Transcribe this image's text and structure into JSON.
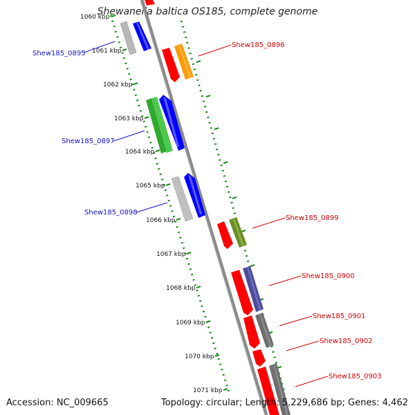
{
  "title": "Shewanella baltica OS185, complete genome",
  "accession": "Accession: NC_009665",
  "summary": "Topology: circular; Length: 5,229,686 bp; Genes: 4,462",
  "colors": {
    "backbone": "#8a8a8a",
    "tick_dots": "#1a8a1a",
    "forward_label": "#d00000",
    "reverse_label": "#1010c0",
    "red": "#ff0000",
    "blue": "#0000ff",
    "green": "#2ea82e",
    "gray": "#b8b8b8",
    "darkgray": "#707070",
    "orange": "#ff9900",
    "olive": "#6b8e23",
    "slate": "#4b4b9b"
  },
  "kbp_labels": [
    "1060 kbp",
    "1061 kbp",
    "1062 kbp",
    "1063 kbp",
    "1064 kbp",
    "1065 kbp",
    "1066 kbp",
    "1067 kbp",
    "1068 kbp",
    "1069 kbp",
    "1070 kbp",
    "1071 kbp"
  ],
  "gene_labels": {
    "g0895": "Shew185_0895",
    "g0896": "Shew185_0896",
    "g0897": "Shew185_0897",
    "g0898": "Shew185_0898",
    "g0899": "Shew185_0899",
    "g0900": "Shew185_0900",
    "g0901": "Shew185_0901",
    "g0902": "Shew185_0902",
    "g0903": "Shew185_0903"
  }
}
